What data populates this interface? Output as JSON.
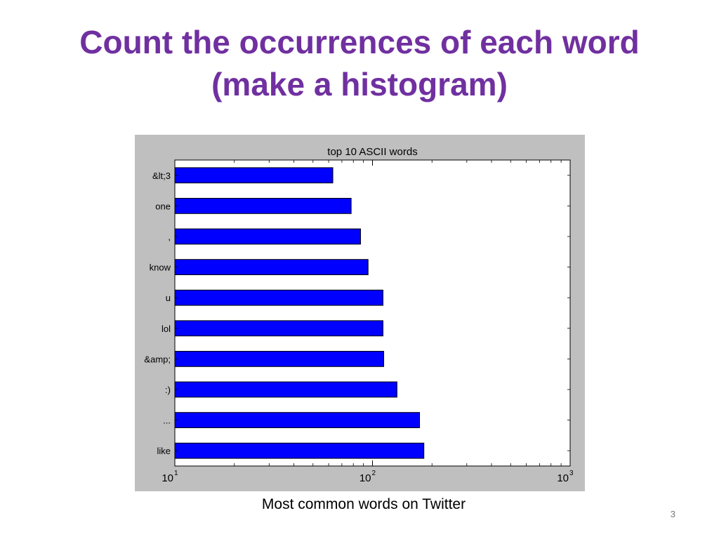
{
  "slide": {
    "title_line1": "Count the occurrences of each word",
    "title_line2": "(make a histogram)",
    "caption": "Most common words on Twitter",
    "slide_number": "3"
  },
  "colors": {
    "title": "#7030a0",
    "bar_fill": "#0000ff",
    "bar_edge": "#000000",
    "figure_background": "#bfbfbf"
  },
  "chart_data": {
    "type": "bar",
    "orientation": "horizontal",
    "title": "top 10 ASCII words",
    "categories": [
      "&lt;3",
      "one",
      ",",
      "know",
      "u",
      "lol",
      "&amp;",
      ":)",
      "...",
      "like"
    ],
    "values": [
      63,
      78,
      87,
      95,
      113,
      113,
      114,
      133,
      173,
      182
    ],
    "xscale": "log",
    "xlim": [
      10,
      1000
    ],
    "x_ticks": [
      {
        "value": 10,
        "base": "10",
        "exponent": "1"
      },
      {
        "value": 100,
        "base": "10",
        "exponent": "2"
      },
      {
        "value": 1000,
        "base": "10",
        "exponent": "3"
      }
    ],
    "grid": false
  }
}
